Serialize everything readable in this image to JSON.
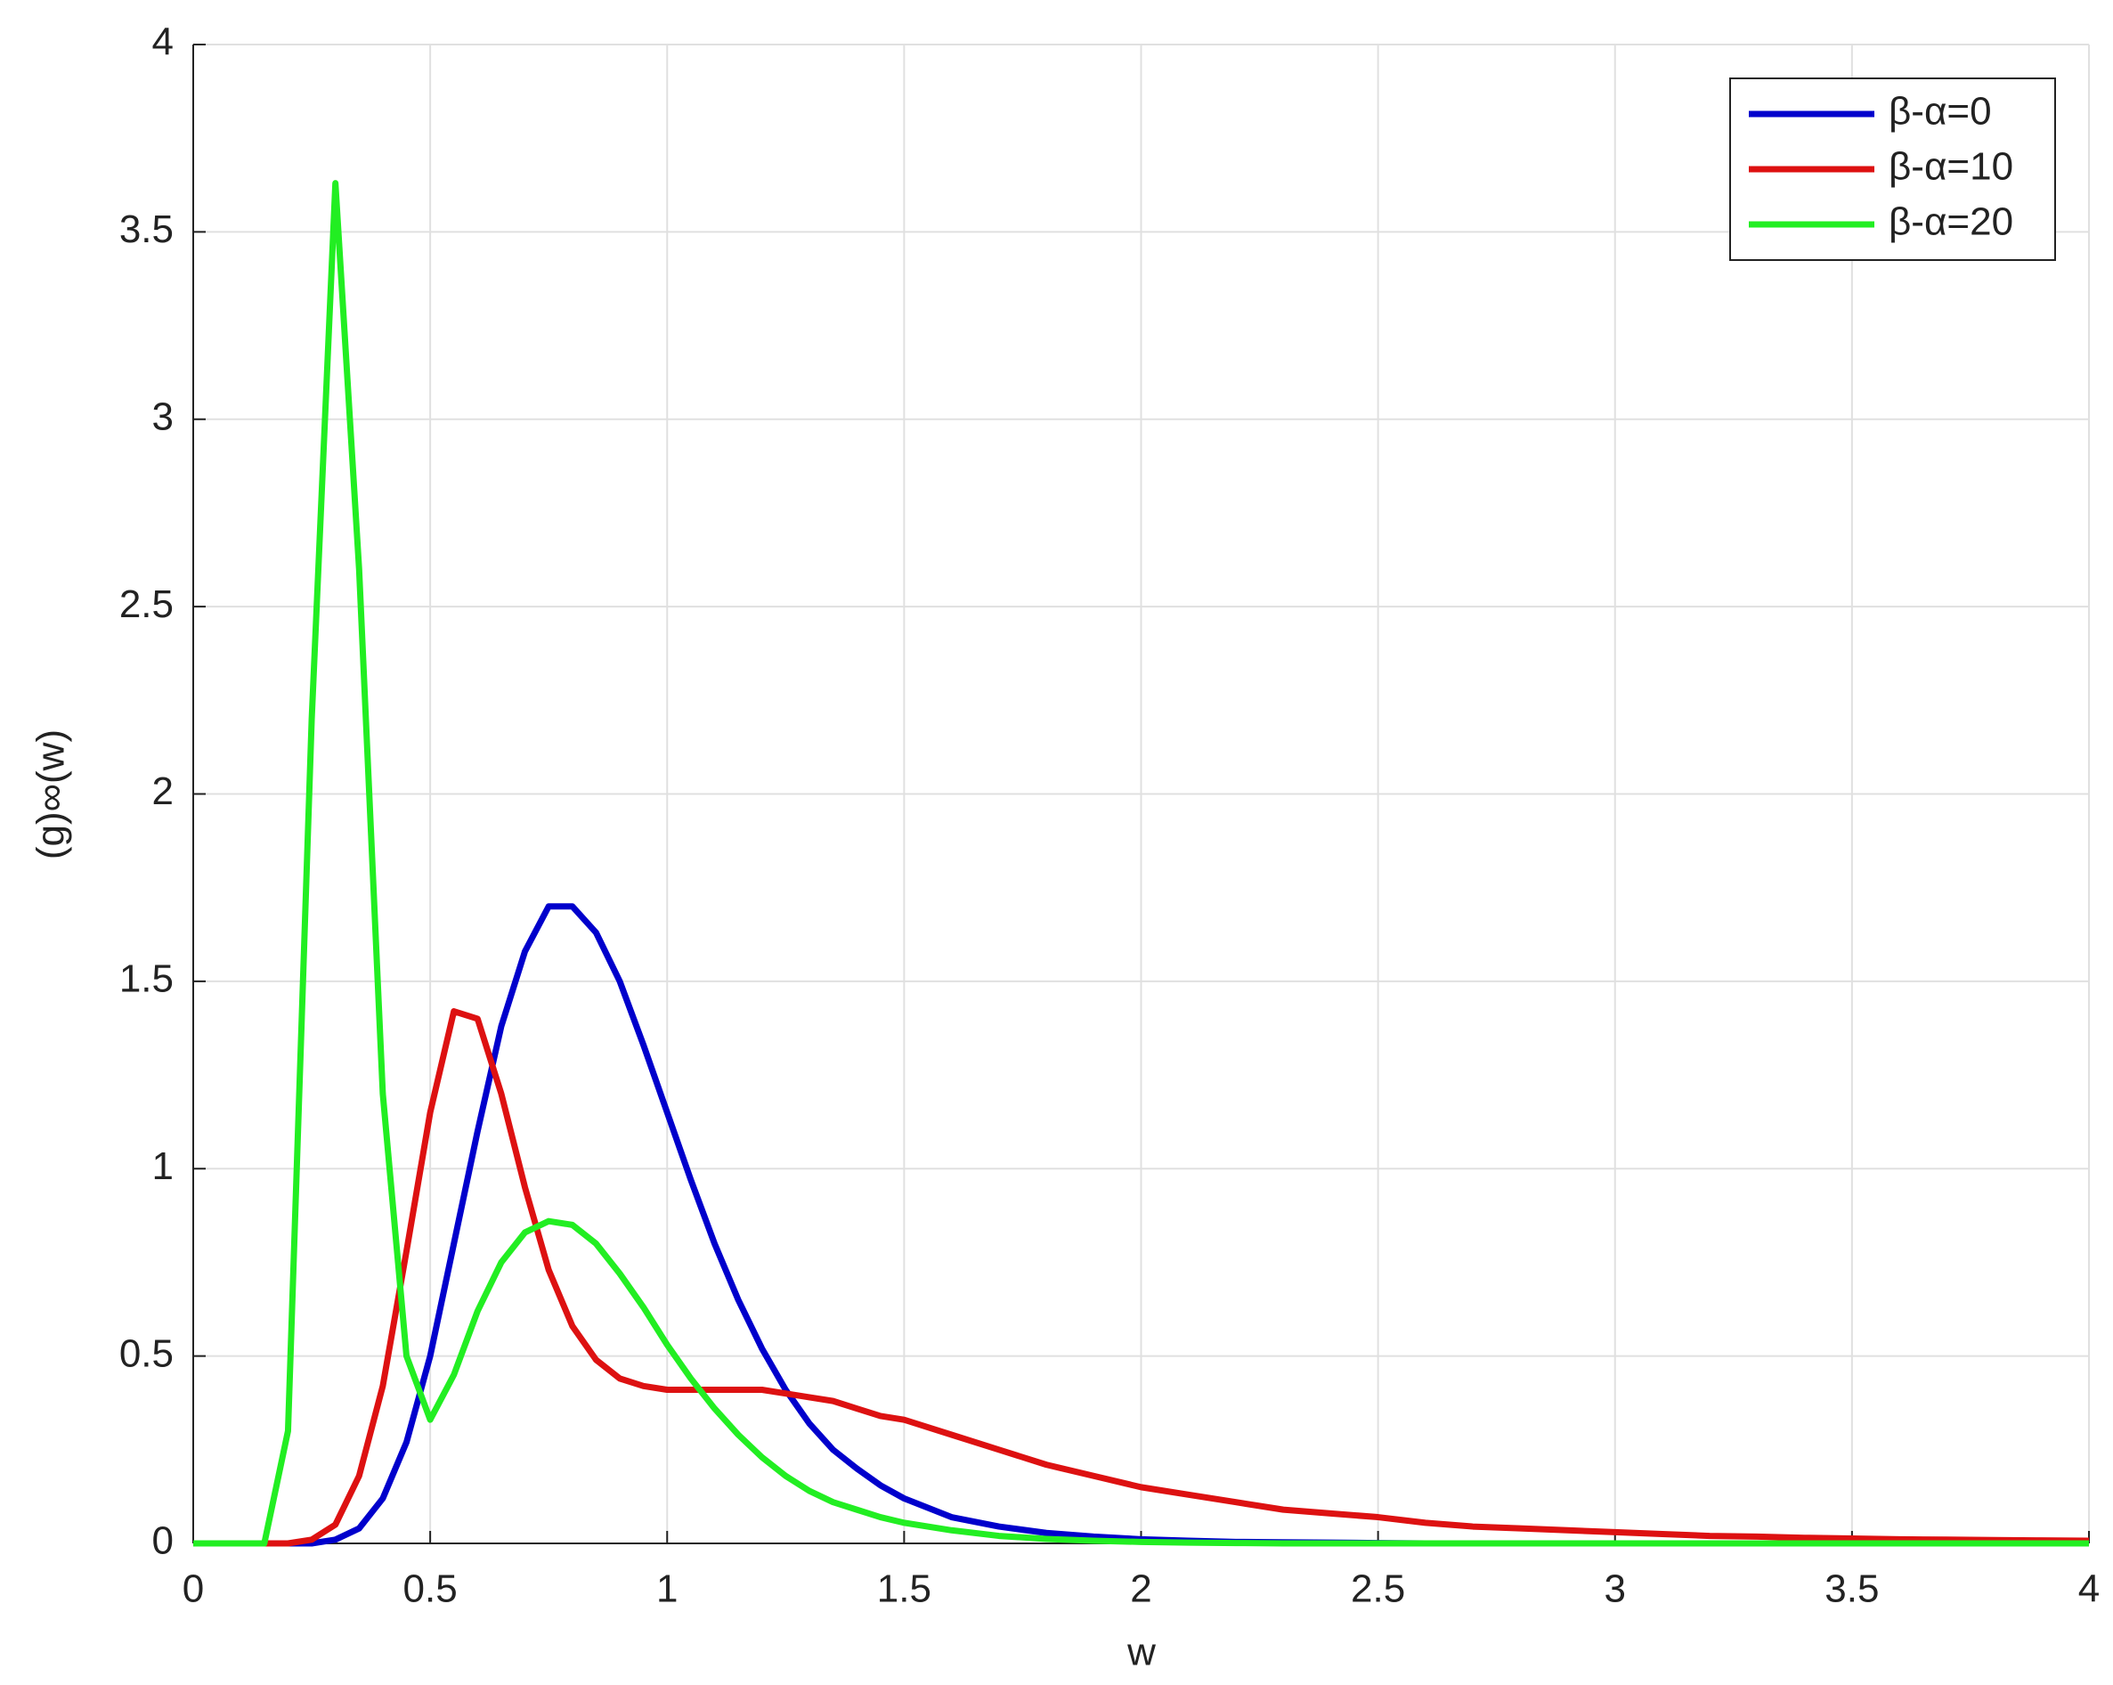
{
  "chart_data": {
    "type": "line",
    "xlabel": "w",
    "ylabel": "(g)∞(w)",
    "x": [
      0,
      0.05,
      0.1,
      0.15,
      0.2,
      0.25,
      0.3,
      0.35,
      0.4,
      0.45,
      0.5,
      0.55,
      0.6,
      0.65,
      0.7,
      0.75,
      0.8,
      0.85,
      0.9,
      0.95,
      1.0,
      1.05,
      1.1,
      1.15,
      1.2,
      1.25,
      1.3,
      1.35,
      1.4,
      1.45,
      1.5,
      1.6,
      1.7,
      1.8,
      1.9,
      2.0,
      2.1,
      2.2,
      2.3,
      2.4,
      2.5,
      2.6,
      2.7,
      2.8,
      2.9,
      3.0,
      3.1,
      3.2,
      3.3,
      3.4,
      3.5,
      3.6,
      3.7,
      3.8,
      3.9,
      4.0
    ],
    "series": [
      {
        "name": "β-α=0",
        "color": "#0000cc",
        "values": [
          0,
          0,
          0,
          0,
          0,
          0,
          0.01,
          0.04,
          0.12,
          0.27,
          0.5,
          0.8,
          1.1,
          1.38,
          1.58,
          1.7,
          1.7,
          1.63,
          1.5,
          1.33,
          1.15,
          0.97,
          0.8,
          0.65,
          0.52,
          0.41,
          0.32,
          0.25,
          0.2,
          0.155,
          0.12,
          0.07,
          0.045,
          0.028,
          0.018,
          0.011,
          0.007,
          0.004,
          0.003,
          0.002,
          0.001,
          0,
          0,
          0,
          0,
          0,
          0,
          0,
          0,
          0,
          0,
          0,
          0,
          0,
          0,
          0
        ]
      },
      {
        "name": "β-α=10",
        "color": "#dd1111",
        "values": [
          0,
          0,
          0,
          0,
          0,
          0.01,
          0.05,
          0.18,
          0.42,
          0.78,
          1.15,
          1.42,
          1.4,
          1.2,
          0.95,
          0.73,
          0.58,
          0.49,
          0.44,
          0.42,
          0.41,
          0.41,
          0.41,
          0.41,
          0.41,
          0.4,
          0.39,
          0.38,
          0.36,
          0.34,
          0.33,
          0.29,
          0.25,
          0.21,
          0.18,
          0.15,
          0.13,
          0.11,
          0.09,
          0.08,
          0.07,
          0.055,
          0.045,
          0.04,
          0.035,
          0.03,
          0.025,
          0.02,
          0.018,
          0.015,
          0.013,
          0.011,
          0.01,
          0.009,
          0.008,
          0.007
        ]
      },
      {
        "name": "β-α=20",
        "color": "#22ee22",
        "values": [
          0,
          0,
          0,
          0,
          0.3,
          2.2,
          3.63,
          2.6,
          1.2,
          0.5,
          0.33,
          0.45,
          0.62,
          0.75,
          0.83,
          0.86,
          0.85,
          0.8,
          0.72,
          0.63,
          0.53,
          0.44,
          0.36,
          0.29,
          0.23,
          0.18,
          0.14,
          0.11,
          0.09,
          0.07,
          0.055,
          0.035,
          0.02,
          0.012,
          0.007,
          0.004,
          0.002,
          0.001,
          0,
          0,
          0,
          0,
          0,
          0,
          0,
          0,
          0,
          0,
          0,
          0,
          0,
          0,
          0,
          0,
          0,
          0
        ]
      }
    ],
    "xlim": [
      0,
      4
    ],
    "ylim": [
      0,
      4
    ],
    "xticks": [
      0,
      0.5,
      1,
      1.5,
      2,
      2.5,
      3,
      3.5,
      4
    ],
    "yticks": [
      0,
      0.5,
      1,
      1.5,
      2,
      2.5,
      3,
      3.5,
      4
    ],
    "grid": true,
    "legend": "top-right"
  }
}
